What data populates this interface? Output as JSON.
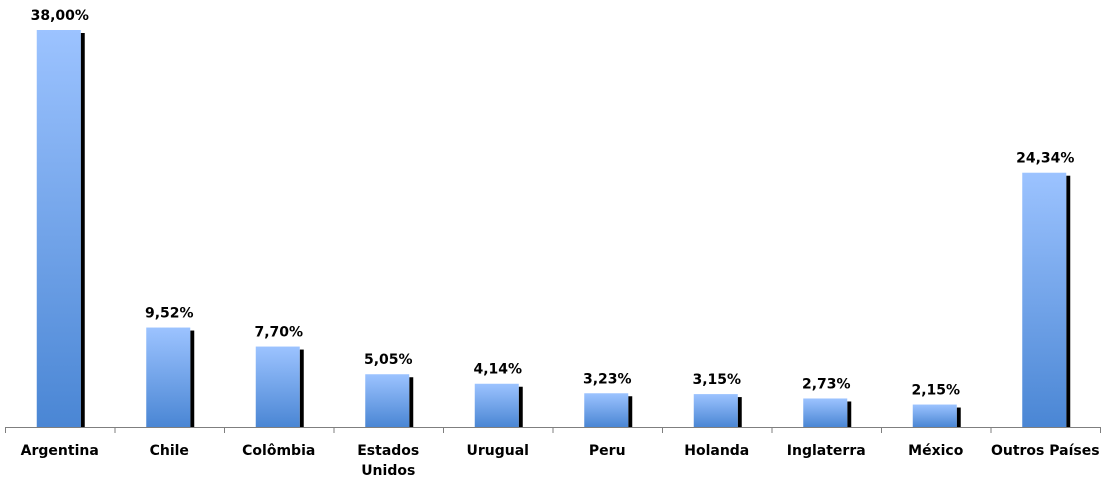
{
  "chart_data": {
    "type": "bar",
    "categories": [
      "Argentina",
      "Chile",
      "Colômbia",
      "Estados Unidos",
      "Urugual",
      "Peru",
      "Holanda",
      "Inglaterra",
      "México",
      "Outros Países"
    ],
    "category_lines": [
      [
        "Argentina"
      ],
      [
        "Chile"
      ],
      [
        "Colômbia"
      ],
      [
        "Estados",
        "Unidos"
      ],
      [
        "Urugual"
      ],
      [
        "Peru"
      ],
      [
        "Holanda"
      ],
      [
        "Inglaterra"
      ],
      [
        "México"
      ],
      [
        "Outros Países"
      ]
    ],
    "values": [
      38.0,
      9.52,
      7.7,
      5.05,
      4.14,
      3.23,
      3.15,
      2.73,
      2.15,
      24.34
    ],
    "value_labels": [
      "38,00%",
      "9,52%",
      "7,70%",
      "5,05%",
      "4,14%",
      "3,23%",
      "3,15%",
      "2,73%",
      "2,15%",
      "24,34%"
    ],
    "title": "",
    "xlabel": "",
    "ylabel": "",
    "ylim": [
      0,
      38
    ],
    "grid": false,
    "legend": "none",
    "colors": {
      "bar_top": "#9cc3ff",
      "bar_bottom": "#4a86d4",
      "bar_shadow": "#000000",
      "axis": "#7f7f7f"
    }
  }
}
